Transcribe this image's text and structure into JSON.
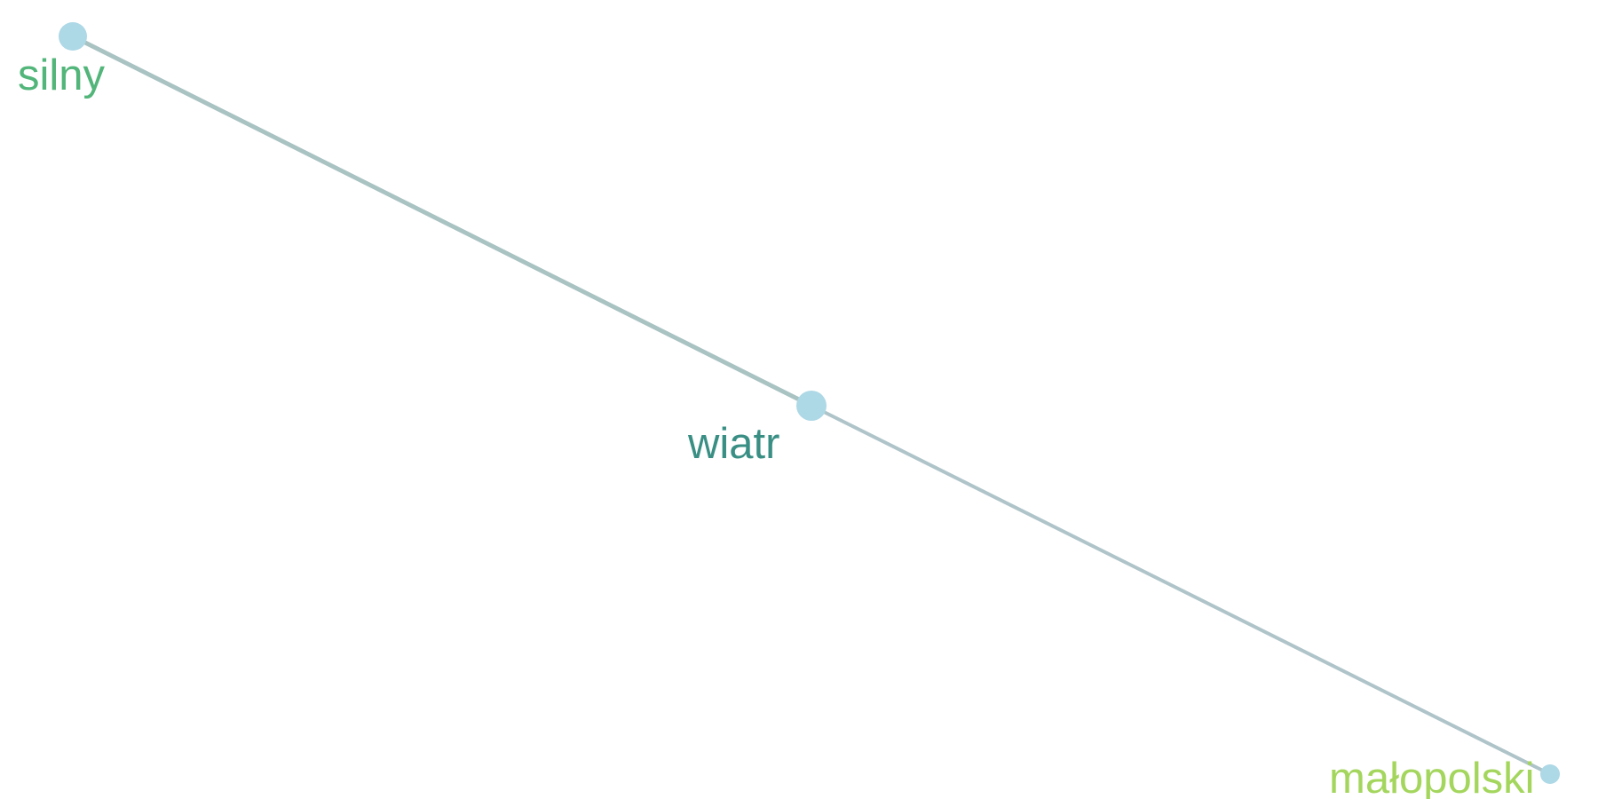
{
  "graph": {
    "nodes": [
      {
        "id": "silny",
        "label": "silny",
        "label_color": "#52b579",
        "node_color": "#add8e6"
      },
      {
        "id": "wiatr",
        "label": "wiatr",
        "label_color": "#3a8f84",
        "node_color": "#add8e6"
      },
      {
        "id": "malopolski",
        "label": "małopolski",
        "label_color": "#a4d65e",
        "node_color": "#add8e6"
      }
    ],
    "edges": [
      {
        "source": "silny",
        "target": "wiatr",
        "color": "#a9c2c2"
      },
      {
        "source": "wiatr",
        "target": "malopolski",
        "color": "#afc4c9"
      }
    ]
  }
}
